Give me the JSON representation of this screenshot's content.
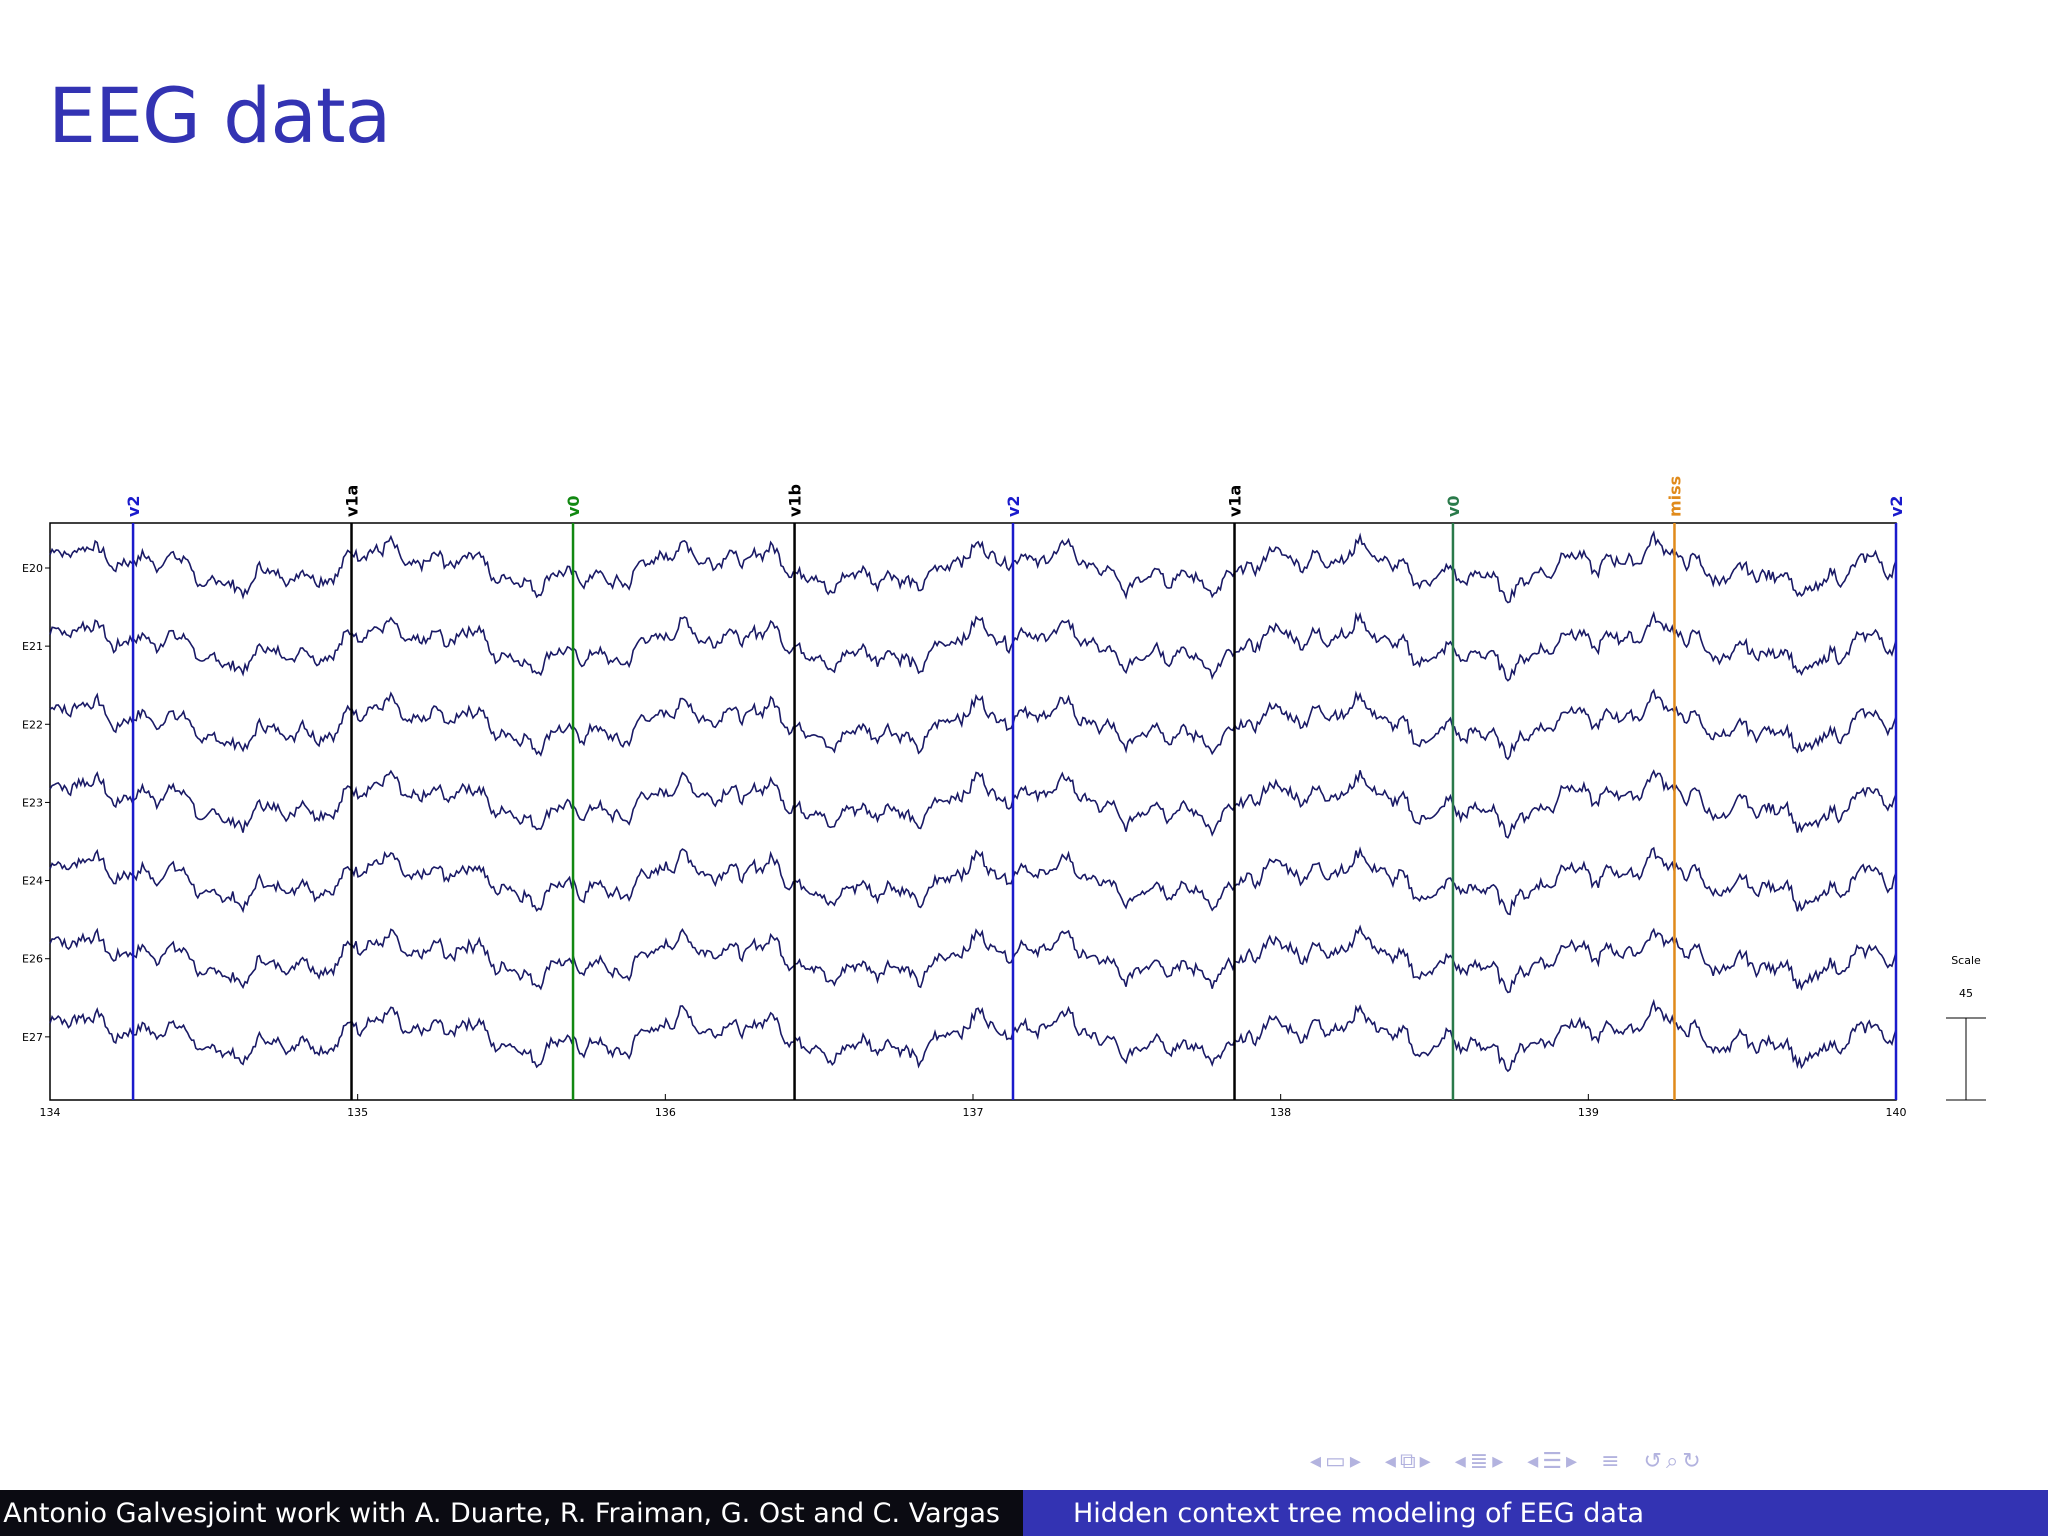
{
  "slide": {
    "title": "EEG data"
  },
  "chart_data": {
    "type": "line",
    "title": "",
    "xlabel": "",
    "ylabel": "",
    "xlim": [
      134,
      140
    ],
    "x_ticks": [
      "134",
      "135",
      "136",
      "137",
      "138",
      "139",
      "140"
    ],
    "channels": [
      "E20",
      "E21",
      "E22",
      "E23",
      "E24",
      "E26",
      "E27"
    ],
    "events": [
      {
        "label": "v2",
        "x": 134.27,
        "color": "#1a1acc"
      },
      {
        "label": "v1a",
        "x": 134.98,
        "color": "#000000"
      },
      {
        "label": "v0",
        "x": 135.7,
        "color": "#118811"
      },
      {
        "label": "v1b",
        "x": 136.42,
        "color": "#000000"
      },
      {
        "label": "v2",
        "x": 137.13,
        "color": "#1a1acc"
      },
      {
        "label": "v1a",
        "x": 137.85,
        "color": "#000000"
      },
      {
        "label": "v0",
        "x": 138.56,
        "color": "#2a7a4a"
      },
      {
        "label": "miss",
        "x": 139.28,
        "color": "#e08a1a"
      },
      {
        "label": "v2",
        "x": 140.0,
        "color": "#1a1acc"
      }
    ],
    "scale": {
      "label": "Scale",
      "value": "45"
    },
    "trace_color": "#1a1a66"
  },
  "navigation": {
    "icons": [
      "slide-prev-icon",
      "slide-icon",
      "slide-next-icon",
      "frame-prev-icon",
      "frame-icon",
      "frame-next-icon",
      "subsection-prev-icon",
      "subsection-icon",
      "subsection-next-icon",
      "section-prev-icon",
      "section-icon",
      "section-next-icon",
      "toc-icon",
      "back-icon",
      "search-icon",
      "forward-icon"
    ]
  },
  "footer": {
    "left": "Antonio Galvesjoint work with A. Duarte, R. Fraiman, G. Ost and C. Vargas",
    "right": "Hidden context tree modeling of EEG data"
  }
}
